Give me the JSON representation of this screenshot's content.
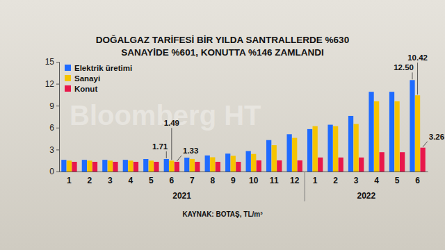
{
  "chart_data": {
    "type": "bar",
    "title": "DOĞALGAZ TARİFESİ BİR YILDA SANTRALLERDE %630",
    "subtitle": "SANAYİDE %601, KONUTTA %146 ZAMLANDI",
    "source": "KAYNAK: BOTAŞ, TL/m³",
    "watermark": "Bloomberg HT",
    "categories": [
      "1",
      "2",
      "3",
      "4",
      "5",
      "6",
      "7",
      "8",
      "9",
      "10",
      "11",
      "12",
      "1",
      "2",
      "3",
      "4",
      "5",
      "6"
    ],
    "x_groups": [
      {
        "label": "2021",
        "count": 12
      },
      {
        "label": "2022",
        "count": 6
      }
    ],
    "series": [
      {
        "name": "Elektrik üretimi",
        "color": "#1f6bff",
        "values": [
          1.6,
          1.6,
          1.6,
          1.6,
          1.71,
          1.71,
          1.9,
          2.2,
          2.45,
          2.8,
          4.3,
          5.1,
          5.8,
          6.4,
          7.6,
          10.9,
          10.9,
          12.5
        ],
        "value_labels": [
          null,
          null,
          null,
          null,
          null,
          "1.71",
          null,
          null,
          null,
          null,
          null,
          null,
          null,
          null,
          null,
          null,
          null,
          "12.50"
        ]
      },
      {
        "name": "Sanayi",
        "color": "#f5c400",
        "values": [
          1.49,
          1.49,
          1.49,
          1.49,
          1.49,
          1.49,
          1.72,
          1.95,
          2.15,
          2.4,
          3.6,
          4.6,
          6.2,
          6.2,
          6.5,
          9.6,
          9.6,
          10.42
        ],
        "value_labels": [
          null,
          null,
          null,
          null,
          null,
          "1.49",
          null,
          null,
          null,
          null,
          null,
          null,
          null,
          null,
          null,
          null,
          null,
          "10.42"
        ]
      },
      {
        "name": "Konut",
        "color": "#e8174a",
        "values": [
          1.33,
          1.33,
          1.33,
          1.33,
          1.33,
          1.33,
          1.33,
          1.33,
          1.33,
          1.52,
          1.52,
          1.52,
          1.92,
          1.92,
          1.92,
          2.64,
          2.64,
          3.26
        ],
        "value_labels": [
          null,
          null,
          null,
          null,
          null,
          "1.33",
          null,
          null,
          null,
          null,
          null,
          null,
          null,
          null,
          null,
          null,
          null,
          "3.26"
        ]
      }
    ],
    "ylim": [
      0,
      15
    ],
    "yticks": [
      0,
      3,
      6,
      9,
      12,
      15
    ],
    "grid": false,
    "legend": "upper left",
    "data_labels": true
  }
}
